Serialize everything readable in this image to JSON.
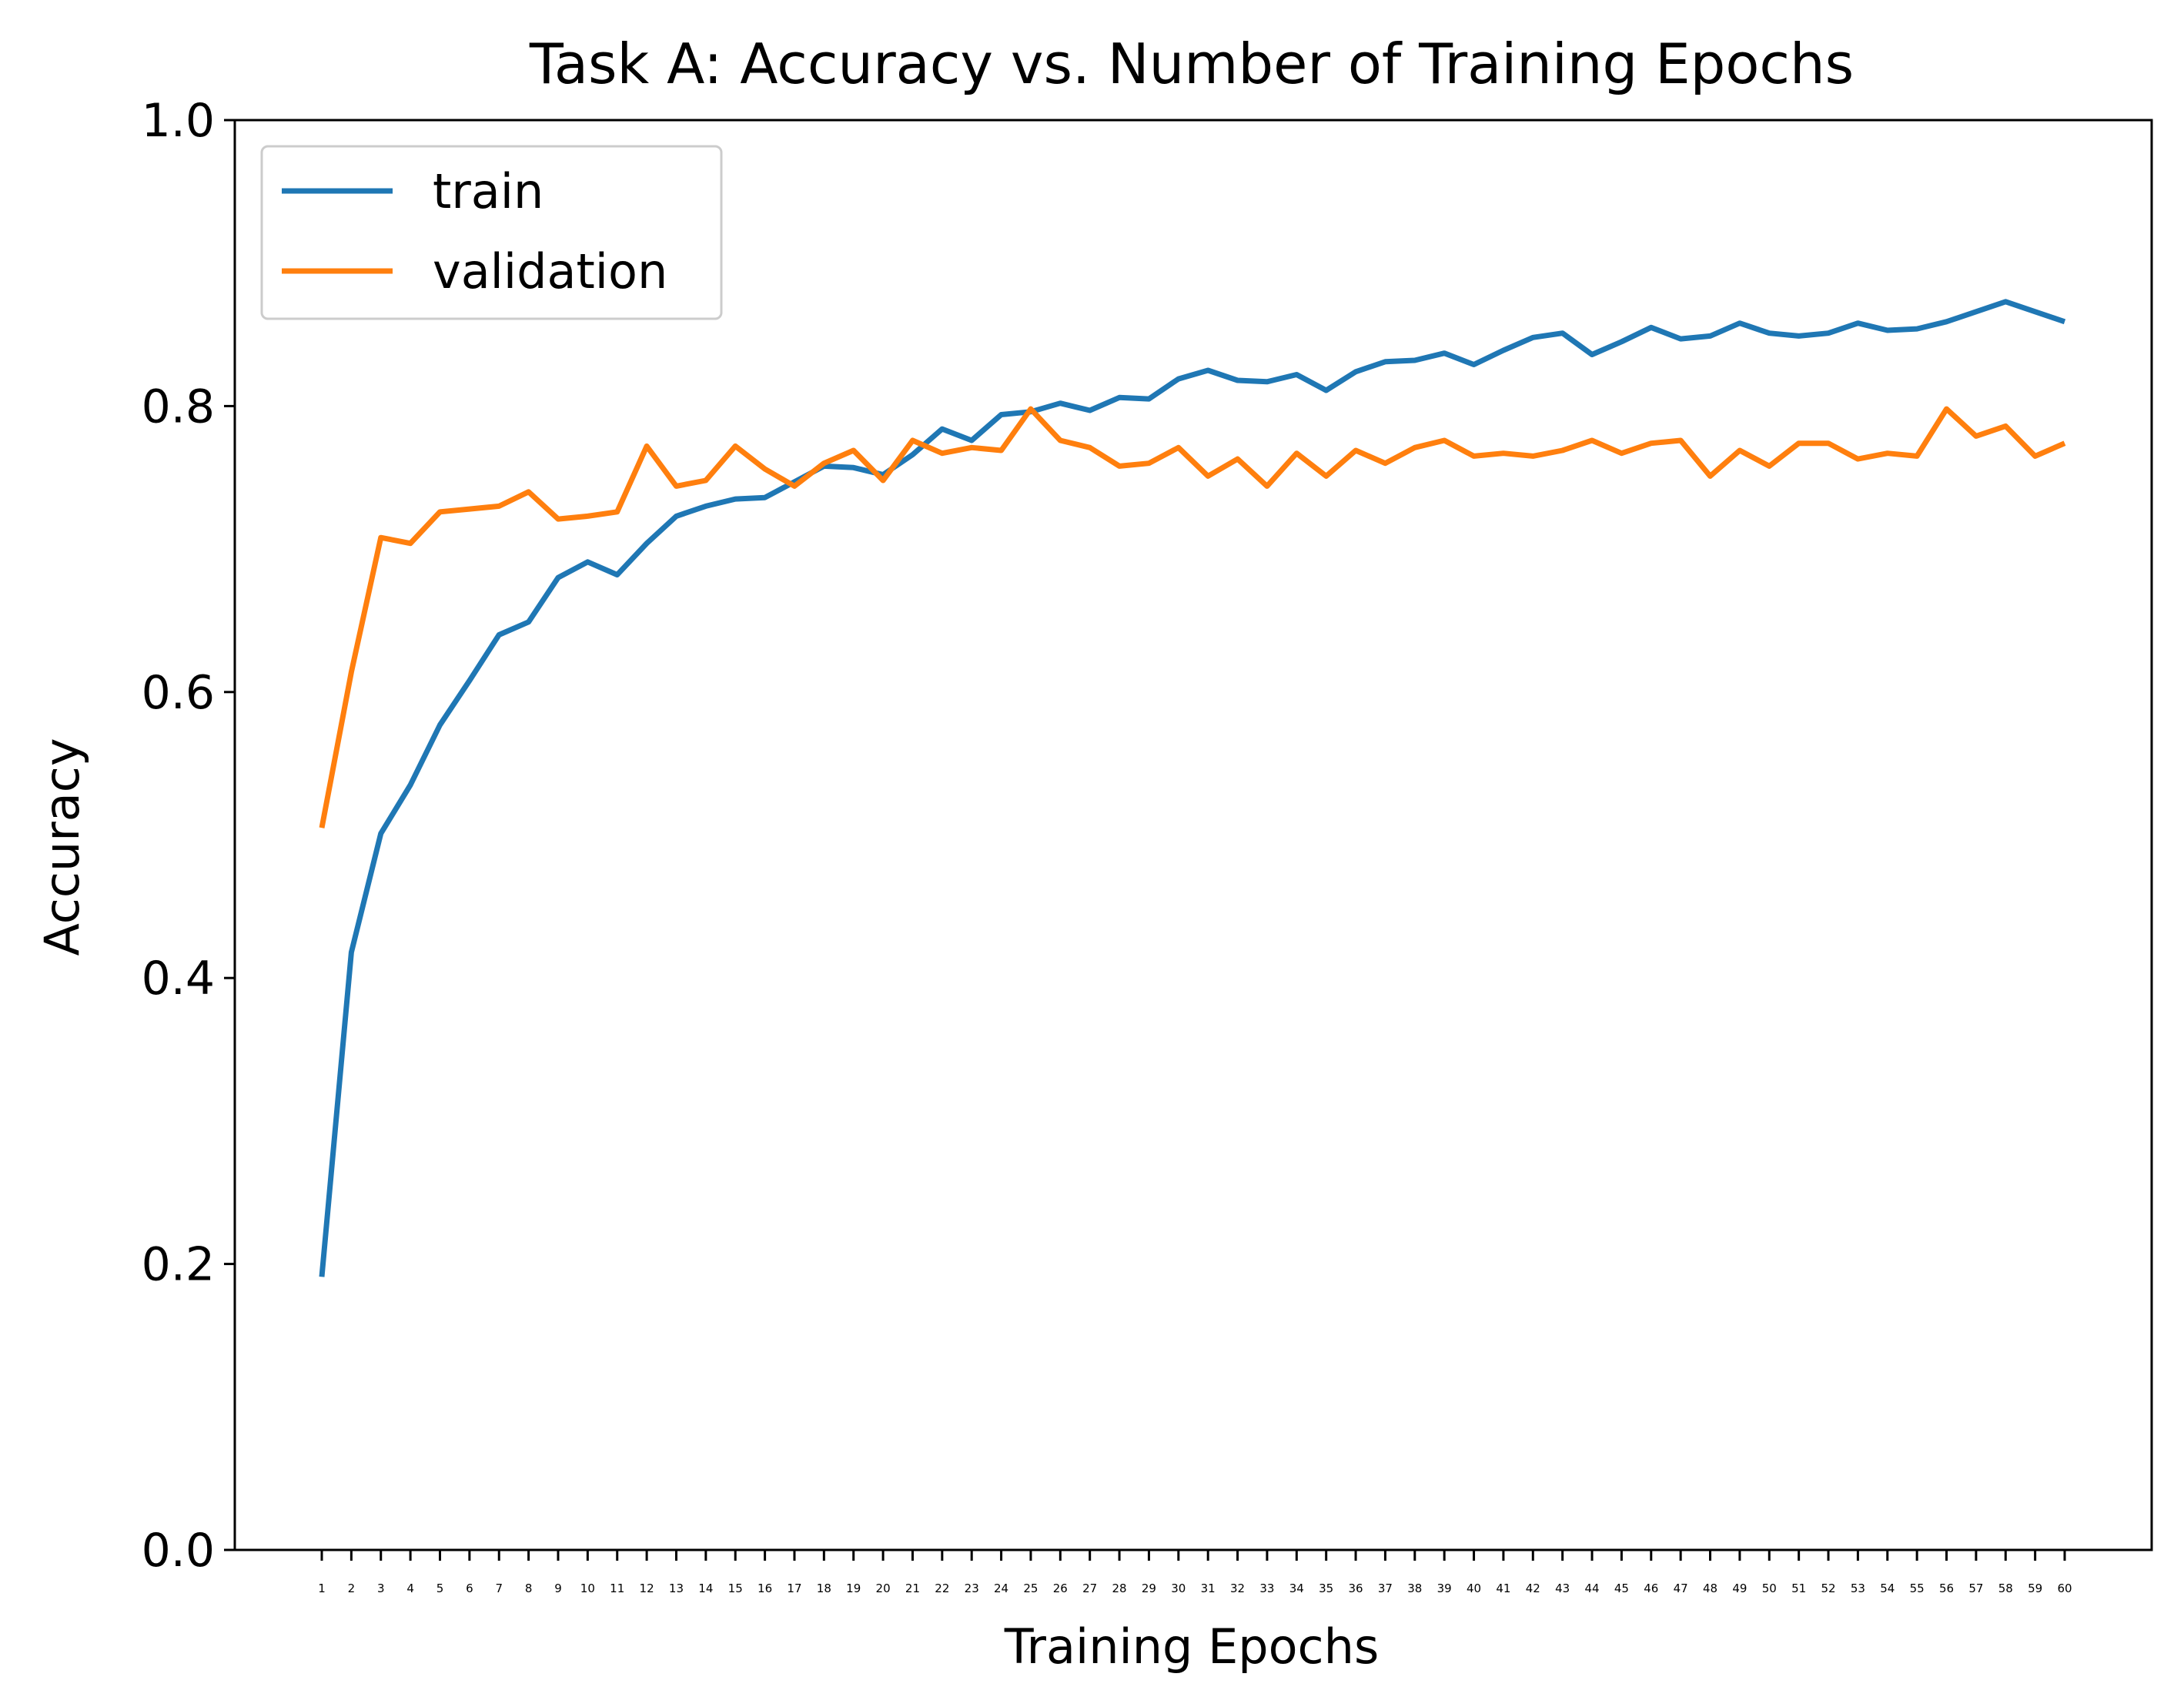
{
  "chart_data": {
    "type": "line",
    "title": "Task A: Accuracy vs. Number of Training Epochs",
    "xlabel": "Training Epochs",
    "ylabel": "Accuracy",
    "ylim": [
      0.0,
      1.0
    ],
    "yticks": [
      "0.0",
      "0.2",
      "0.4",
      "0.6",
      "0.8",
      "1.0"
    ],
    "x": [
      1,
      2,
      3,
      4,
      5,
      6,
      7,
      8,
      9,
      10,
      11,
      12,
      13,
      14,
      15,
      16,
      17,
      18,
      19,
      20,
      21,
      22,
      23,
      24,
      25,
      26,
      27,
      28,
      29,
      30,
      31,
      32,
      33,
      34,
      35,
      36,
      37,
      38,
      39,
      40,
      41,
      42,
      43,
      44,
      45,
      46,
      47,
      48,
      49,
      50,
      51,
      52,
      53,
      54,
      55,
      56,
      57,
      58,
      59,
      60
    ],
    "legend_position": "upper-left",
    "grid": false,
    "series": [
      {
        "name": "train",
        "color": "#1f77b4",
        "values": [
          0.191,
          0.418,
          0.501,
          0.535,
          0.577,
          0.608,
          0.64,
          0.649,
          0.68,
          0.691,
          0.682,
          0.704,
          0.723,
          0.73,
          0.735,
          0.736,
          0.747,
          0.758,
          0.757,
          0.752,
          0.766,
          0.784,
          0.776,
          0.794,
          0.796,
          0.802,
          0.797,
          0.806,
          0.805,
          0.819,
          0.825,
          0.818,
          0.817,
          0.822,
          0.811,
          0.824,
          0.831,
          0.832,
          0.837,
          0.829,
          0.839,
          0.848,
          0.851,
          0.836,
          0.845,
          0.855,
          0.847,
          0.849,
          0.858,
          0.851,
          0.849,
          0.851,
          0.858,
          0.853,
          0.854,
          0.859,
          0.866,
          0.873,
          0.866,
          0.859
        ]
      },
      {
        "name": "validation",
        "color": "#ff7f0e",
        "values": [
          0.505,
          0.614,
          0.708,
          0.704,
          0.726,
          0.728,
          0.73,
          0.74,
          0.721,
          0.723,
          0.726,
          0.772,
          0.744,
          0.748,
          0.772,
          0.756,
          0.744,
          0.76,
          0.769,
          0.748,
          0.776,
          0.767,
          0.771,
          0.769,
          0.798,
          0.776,
          0.771,
          0.758,
          0.76,
          0.771,
          0.751,
          0.763,
          0.744,
          0.767,
          0.751,
          0.769,
          0.76,
          0.771,
          0.776,
          0.765,
          0.767,
          0.765,
          0.769,
          0.776,
          0.767,
          0.774,
          0.776,
          0.751,
          0.769,
          0.758,
          0.774,
          0.774,
          0.763,
          0.767,
          0.765,
          0.798,
          0.779,
          0.786,
          0.765,
          0.774
        ]
      }
    ]
  }
}
